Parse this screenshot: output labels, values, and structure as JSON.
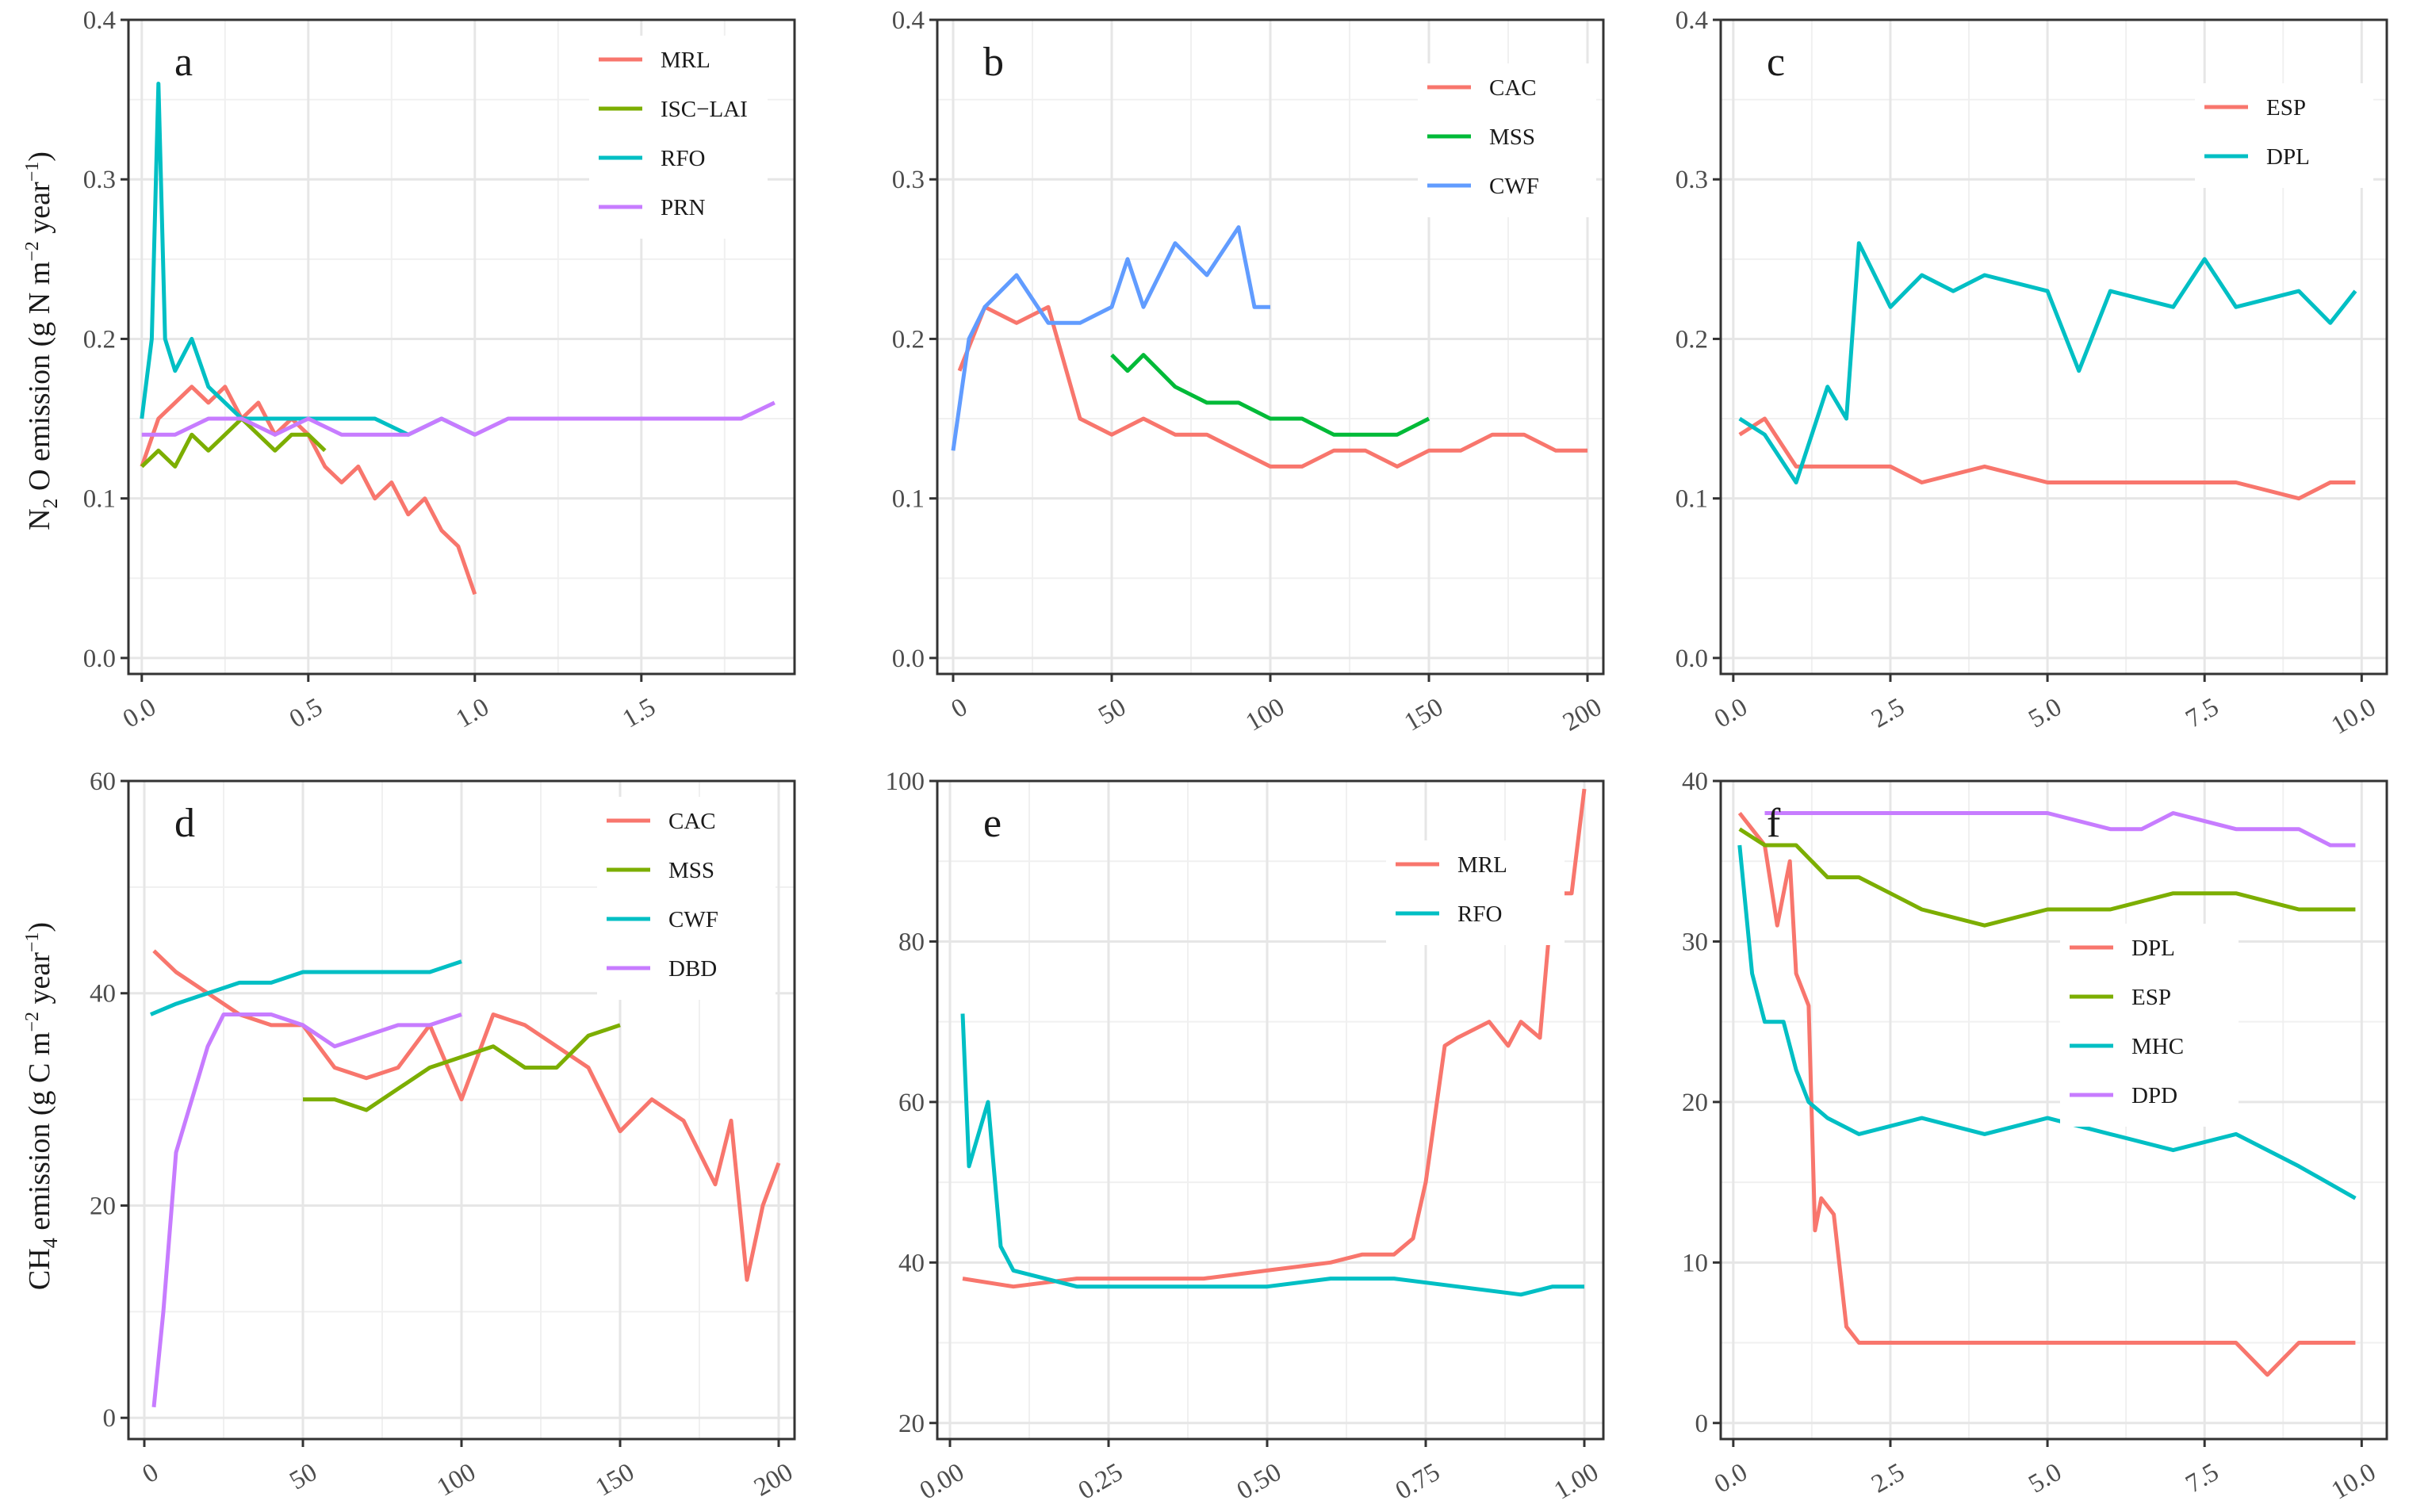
{
  "y_label_top": {
    "pre": "N",
    "sub1": "2",
    "mid": " O emission (g N m",
    "sup": "−2",
    "post": " year",
    "sup2": "−1",
    "end": ")"
  },
  "y_label_bottom": {
    "pre": "CH",
    "sub1": "4",
    "mid": " emission (g C m",
    "sup": "−2",
    "post": " year",
    "sup2": "−1",
    "end": ")"
  },
  "chart_data": [
    {
      "type": "line",
      "letter": "a",
      "xlim": [
        -0.04,
        1.96
      ],
      "ylim": [
        -0.01,
        0.4
      ],
      "xticks": [
        0.0,
        0.5,
        1.0,
        1.5
      ],
      "xtick_labels": [
        "0.0",
        "0.5",
        "1.0",
        "1.5"
      ],
      "yticks": [
        0.0,
        0.1,
        0.2,
        0.3,
        0.4
      ],
      "ytick_labels": [
        "0.0",
        "0.1",
        "0.2",
        "0.3",
        "0.4"
      ],
      "legend": [
        "MRL",
        "ISC−LAI",
        "RFO",
        "PRN"
      ],
      "series": [
        {
          "name": "MRL",
          "color": "#F8766D",
          "x": [
            0.0,
            0.05,
            0.1,
            0.15,
            0.2,
            0.25,
            0.3,
            0.35,
            0.4,
            0.45,
            0.5,
            0.55,
            0.6,
            0.65,
            0.7,
            0.75,
            0.8,
            0.85,
            0.9,
            0.95,
            1.0
          ],
          "y": [
            0.12,
            0.15,
            0.16,
            0.17,
            0.16,
            0.17,
            0.15,
            0.16,
            0.14,
            0.15,
            0.14,
            0.12,
            0.11,
            0.12,
            0.1,
            0.11,
            0.09,
            0.1,
            0.08,
            0.07,
            0.04
          ]
        },
        {
          "name": "ISC−LAI",
          "color": "#7CAE00",
          "x": [
            0.0,
            0.05,
            0.1,
            0.15,
            0.2,
            0.25,
            0.3,
            0.35,
            0.4,
            0.45,
            0.5,
            0.55
          ],
          "y": [
            0.12,
            0.13,
            0.12,
            0.14,
            0.13,
            0.14,
            0.15,
            0.14,
            0.13,
            0.14,
            0.14,
            0.13
          ]
        },
        {
          "name": "RFO",
          "color": "#00BFC4",
          "x": [
            0.0,
            0.03,
            0.05,
            0.07,
            0.1,
            0.15,
            0.2,
            0.25,
            0.3,
            0.4,
            0.5,
            0.6,
            0.7,
            0.8,
            0.9,
            1.0
          ],
          "y": [
            0.15,
            0.2,
            0.36,
            0.2,
            0.18,
            0.2,
            0.17,
            0.16,
            0.15,
            0.15,
            0.15,
            0.15,
            0.15,
            0.14,
            0.15,
            0.14
          ]
        },
        {
          "name": "PRN",
          "color": "#C77CFF",
          "x": [
            0.0,
            0.1,
            0.2,
            0.3,
            0.4,
            0.5,
            0.6,
            0.7,
            0.8,
            0.9,
            1.0,
            1.1,
            1.2,
            1.3,
            1.4,
            1.5,
            1.6,
            1.7,
            1.8,
            1.9
          ],
          "y": [
            0.14,
            0.14,
            0.15,
            0.15,
            0.14,
            0.15,
            0.14,
            0.14,
            0.14,
            0.15,
            0.14,
            0.15,
            0.15,
            0.15,
            0.15,
            0.15,
            0.15,
            0.15,
            0.15,
            0.16
          ]
        }
      ]
    },
    {
      "type": "line",
      "letter": "b",
      "xlim": [
        -5,
        205
      ],
      "ylim": [
        -0.01,
        0.4
      ],
      "xticks": [
        0,
        50,
        100,
        150,
        200
      ],
      "xtick_labels": [
        "0",
        "50",
        "100",
        "150",
        "200"
      ],
      "yticks": [
        0.0,
        0.1,
        0.2,
        0.3,
        0.4
      ],
      "ytick_labels": [
        "0.0",
        "0.1",
        "0.2",
        "0.3",
        "0.4"
      ],
      "legend": [
        "CAC",
        "MSS",
        "CWF"
      ],
      "series": [
        {
          "name": "CAC",
          "color": "#F8766D",
          "x": [
            2,
            10,
            20,
            30,
            40,
            50,
            60,
            70,
            80,
            90,
            100,
            110,
            120,
            130,
            140,
            150,
            160,
            170,
            180,
            190,
            200
          ],
          "y": [
            0.18,
            0.22,
            0.21,
            0.22,
            0.15,
            0.14,
            0.15,
            0.14,
            0.14,
            0.13,
            0.12,
            0.12,
            0.13,
            0.13,
            0.12,
            0.13,
            0.13,
            0.14,
            0.14,
            0.13,
            0.13
          ]
        },
        {
          "name": "MSS",
          "color": "#00BA38",
          "x": [
            50,
            55,
            60,
            70,
            80,
            90,
            100,
            110,
            120,
            130,
            140,
            150
          ],
          "y": [
            0.19,
            0.18,
            0.19,
            0.17,
            0.16,
            0.16,
            0.15,
            0.15,
            0.14,
            0.14,
            0.14,
            0.15
          ]
        },
        {
          "name": "CWF",
          "color": "#619CFF",
          "x": [
            0,
            5,
            10,
            20,
            30,
            40,
            50,
            55,
            60,
            70,
            80,
            90,
            95,
            100
          ],
          "y": [
            0.13,
            0.2,
            0.22,
            0.24,
            0.21,
            0.21,
            0.22,
            0.25,
            0.22,
            0.26,
            0.24,
            0.27,
            0.22,
            0.22
          ]
        }
      ]
    },
    {
      "type": "line",
      "letter": "c",
      "xlim": [
        -0.2,
        10.4
      ],
      "ylim": [
        -0.01,
        0.4
      ],
      "xticks": [
        0.0,
        2.5,
        5.0,
        7.5,
        10.0
      ],
      "xtick_labels": [
        "0.0",
        "2.5",
        "5.0",
        "7.5",
        "10.0"
      ],
      "yticks": [
        0.0,
        0.1,
        0.2,
        0.3,
        0.4
      ],
      "ytick_labels": [
        "0.0",
        "0.1",
        "0.2",
        "0.3",
        "0.4"
      ],
      "legend": [
        "ESP",
        "DPL"
      ],
      "series": [
        {
          "name": "ESP",
          "color": "#F8766D",
          "x": [
            0.1,
            0.5,
            1.0,
            1.5,
            2.0,
            2.5,
            3.0,
            4.0,
            5.0,
            6.0,
            7.0,
            8.0,
            9.0,
            9.5,
            9.9
          ],
          "y": [
            0.14,
            0.15,
            0.12,
            0.12,
            0.12,
            0.12,
            0.11,
            0.12,
            0.11,
            0.11,
            0.11,
            0.11,
            0.1,
            0.11,
            0.11
          ]
        },
        {
          "name": "DPL",
          "color": "#00BFC4",
          "x": [
            0.1,
            0.5,
            1.0,
            1.5,
            1.8,
            2.0,
            2.5,
            3.0,
            3.5,
            4.0,
            5.0,
            5.5,
            6.0,
            7.0,
            7.5,
            8.0,
            9.0,
            9.5,
            9.9
          ],
          "y": [
            0.15,
            0.14,
            0.11,
            0.17,
            0.15,
            0.26,
            0.22,
            0.24,
            0.23,
            0.24,
            0.23,
            0.18,
            0.23,
            0.22,
            0.25,
            0.22,
            0.23,
            0.21,
            0.23
          ]
        }
      ]
    },
    {
      "type": "line",
      "letter": "d",
      "xlim": [
        -5,
        205
      ],
      "ylim": [
        -2,
        60
      ],
      "xticks": [
        0,
        50,
        100,
        150,
        200
      ],
      "xtick_labels": [
        "0",
        "50",
        "100",
        "150",
        "200"
      ],
      "yticks": [
        0,
        20,
        40,
        60
      ],
      "ytick_labels": [
        "0",
        "20",
        "40",
        "60"
      ],
      "legend": [
        "CAC",
        "MSS",
        "CWF",
        "DBD"
      ],
      "series": [
        {
          "name": "CAC",
          "color": "#F8766D",
          "x": [
            3,
            10,
            20,
            30,
            40,
            50,
            60,
            70,
            80,
            90,
            100,
            110,
            120,
            130,
            140,
            150,
            160,
            170,
            180,
            185,
            190,
            195,
            200
          ],
          "y": [
            44,
            42,
            40,
            38,
            37,
            37,
            33,
            32,
            33,
            37,
            30,
            38,
            37,
            35,
            33,
            27,
            30,
            28,
            22,
            28,
            13,
            20,
            24
          ]
        },
        {
          "name": "MSS",
          "color": "#7CAE00",
          "x": [
            50,
            60,
            70,
            80,
            90,
            100,
            110,
            120,
            130,
            140,
            150
          ],
          "y": [
            30,
            30,
            29,
            31,
            33,
            34,
            35,
            33,
            33,
            36,
            37
          ]
        },
        {
          "name": "CWF",
          "color": "#00BFC4",
          "x": [
            2,
            10,
            20,
            30,
            40,
            50,
            60,
            70,
            80,
            90,
            100
          ],
          "y": [
            38,
            39,
            40,
            41,
            41,
            42,
            42,
            42,
            42,
            42,
            43
          ]
        },
        {
          "name": "DBD",
          "color": "#C77CFF",
          "x": [
            3,
            6,
            10,
            15,
            20,
            25,
            30,
            40,
            50,
            60,
            70,
            80,
            90,
            100
          ],
          "y": [
            1,
            10,
            25,
            30,
            35,
            38,
            38,
            38,
            37,
            35,
            36,
            37,
            37,
            38
          ]
        }
      ]
    },
    {
      "type": "line",
      "letter": "e",
      "xlim": [
        -0.02,
        1.03
      ],
      "ylim": [
        18,
        100
      ],
      "xticks": [
        0.0,
        0.25,
        0.5,
        0.75,
        1.0
      ],
      "xtick_labels": [
        "0.00",
        "0.25",
        "0.50",
        "0.75",
        "1.00"
      ],
      "yticks": [
        20,
        40,
        60,
        80,
        100
      ],
      "ytick_labels": [
        "20",
        "40",
        "60",
        "80",
        "100"
      ],
      "legend": [
        "MRL",
        "RFO"
      ],
      "series": [
        {
          "name": "MRL",
          "color": "#F8766D",
          "x": [
            0.02,
            0.1,
            0.2,
            0.3,
            0.4,
            0.5,
            0.6,
            0.65,
            0.7,
            0.73,
            0.75,
            0.78,
            0.8,
            0.85,
            0.88,
            0.9,
            0.93,
            0.95,
            0.98,
            1.0
          ],
          "y": [
            38,
            37,
            38,
            38,
            38,
            39,
            40,
            41,
            41,
            43,
            50,
            67,
            68,
            70,
            67,
            70,
            68,
            86,
            86,
            99
          ]
        },
        {
          "name": "RFO",
          "color": "#00BFC4",
          "x": [
            0.02,
            0.03,
            0.06,
            0.08,
            0.1,
            0.15,
            0.2,
            0.3,
            0.4,
            0.5,
            0.6,
            0.7,
            0.8,
            0.9,
            0.95,
            1.0
          ],
          "y": [
            71,
            52,
            60,
            42,
            39,
            38,
            37,
            37,
            37,
            37,
            38,
            38,
            37,
            36,
            37,
            37
          ]
        }
      ]
    },
    {
      "type": "line",
      "letter": "f",
      "xlim": [
        -0.2,
        10.4
      ],
      "ylim": [
        -1,
        40
      ],
      "xticks": [
        0.0,
        2.5,
        5.0,
        7.5,
        10.0
      ],
      "xtick_labels": [
        "0.0",
        "2.5",
        "5.0",
        "7.5",
        "10.0"
      ],
      "yticks": [
        0,
        10,
        20,
        30,
        40
      ],
      "ytick_labels": [
        "0",
        "10",
        "20",
        "30",
        "40"
      ],
      "legend": [
        "DPL",
        "ESP",
        "MHC",
        "DPD"
      ],
      "series": [
        {
          "name": "DPL",
          "color": "#F8766D",
          "x": [
            0.1,
            0.3,
            0.5,
            0.7,
            0.9,
            1.0,
            1.2,
            1.3,
            1.4,
            1.6,
            1.8,
            2.0,
            3.0,
            4.0,
            5.0,
            6.0,
            7.0,
            8.0,
            8.5,
            9.0,
            9.5,
            9.9
          ],
          "y": [
            38,
            37,
            36,
            31,
            35,
            28,
            26,
            12,
            14,
            13,
            6,
            5,
            5,
            5,
            5,
            5,
            5,
            5,
            3,
            5,
            5,
            5
          ]
        },
        {
          "name": "ESP",
          "color": "#7CAE00",
          "x": [
            0.1,
            0.5,
            1.0,
            1.5,
            2.0,
            2.5,
            3.0,
            4.0,
            5.0,
            6.0,
            7.0,
            8.0,
            9.0,
            9.9
          ],
          "y": [
            37,
            36,
            36,
            34,
            34,
            33,
            32,
            31,
            32,
            32,
            33,
            33,
            32,
            32
          ]
        },
        {
          "name": "MHC",
          "color": "#00BFC4",
          "x": [
            0.1,
            0.3,
            0.5,
            0.8,
            1.0,
            1.2,
            1.5,
            2.0,
            3.0,
            4.0,
            5.0,
            6.0,
            7.0,
            8.0,
            9.0,
            9.9
          ],
          "y": [
            36,
            28,
            25,
            25,
            22,
            20,
            19,
            18,
            19,
            18,
            19,
            18,
            17,
            18,
            16,
            14
          ]
        },
        {
          "name": "DPD",
          "color": "#C77CFF",
          "x": [
            0.5,
            1.0,
            2.0,
            3.0,
            4.0,
            5.0,
            6.0,
            6.5,
            7.0,
            8.0,
            9.0,
            9.5,
            9.9
          ],
          "y": [
            38,
            38,
            38,
            38,
            38,
            38,
            37,
            37,
            38,
            37,
            37,
            36,
            36
          ]
        }
      ]
    }
  ]
}
